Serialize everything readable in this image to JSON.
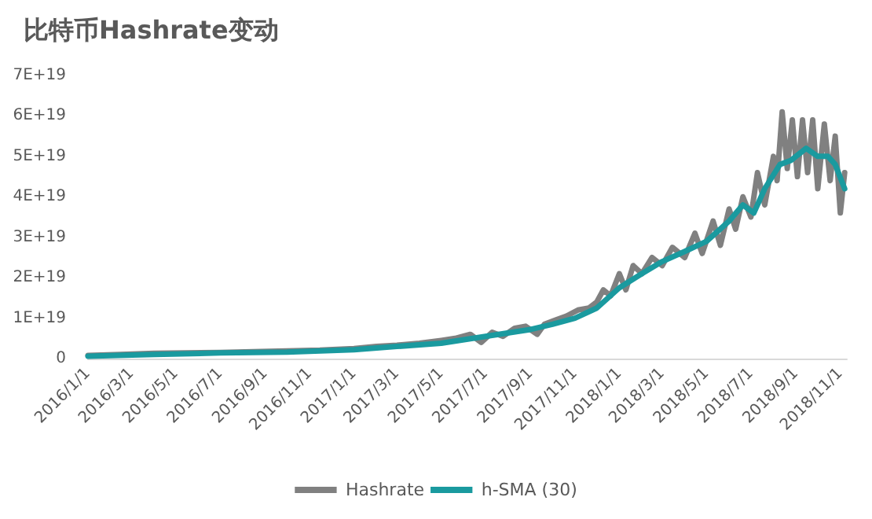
{
  "chart_data": {
    "type": "line",
    "title": "比特币Hashrate变动",
    "xlim": [
      "2016-01-01",
      "2018-11-10"
    ],
    "xticks": [
      {
        "value": "2016-01-01",
        "label": "2016/1/1"
      },
      {
        "value": "2016-03-01",
        "label": "2016/3/1"
      },
      {
        "value": "2016-05-01",
        "label": "2016/5/1"
      },
      {
        "value": "2016-07-01",
        "label": "2016/7/1"
      },
      {
        "value": "2016-09-01",
        "label": "2016/9/1"
      },
      {
        "value": "2016-11-01",
        "label": "2016/11/1"
      },
      {
        "value": "2017-01-01",
        "label": "2017/1/1"
      },
      {
        "value": "2017-03-01",
        "label": "2017/3/1"
      },
      {
        "value": "2017-05-01",
        "label": "2017/5/1"
      },
      {
        "value": "2017-07-01",
        "label": "2017/7/1"
      },
      {
        "value": "2017-09-01",
        "label": "2017/9/1"
      },
      {
        "value": "2017-11-01",
        "label": "2017/11/1"
      },
      {
        "value": "2018-01-01",
        "label": "2018/1/1"
      },
      {
        "value": "2018-03-01",
        "label": "2018/3/1"
      },
      {
        "value": "2018-05-01",
        "label": "2018/5/1"
      },
      {
        "value": "2018-07-01",
        "label": "2018/7/1"
      },
      {
        "value": "2018-09-01",
        "label": "2018/9/1"
      },
      {
        "value": "2018-11-01",
        "label": "2018/11/1"
      }
    ],
    "ylim": [
      0,
      7e+19
    ],
    "yticks": [
      0,
      {
        "value": 1e+19,
        "label": "1E+19"
      },
      {
        "value": 2e+19,
        "label": "2E+19"
      },
      {
        "value": 3e+19,
        "label": "3E+19"
      },
      {
        "value": 4e+19,
        "label": "4E+19"
      },
      {
        "value": 5e+19,
        "label": "5E+19"
      },
      {
        "value": 6e+19,
        "label": "6E+19"
      },
      {
        "value": 7e+19,
        "label": "7E+19"
      }
    ],
    "grid": false,
    "legend": "bottom",
    "marker": "none",
    "line_style": "solid",
    "series": [
      {
        "name": "Hashrate",
        "color": "#808080",
        "x": [
          "2016-01-01",
          "2016-02-15",
          "2016-04-01",
          "2016-05-15",
          "2016-07-01",
          "2016-08-15",
          "2016-10-01",
          "2016-11-15",
          "2017-01-01",
          "2017-02-01",
          "2017-03-01",
          "2017-04-01",
          "2017-05-01",
          "2017-05-20",
          "2017-06-10",
          "2017-06-25",
          "2017-07-10",
          "2017-07-25",
          "2017-08-10",
          "2017-08-25",
          "2017-09-10",
          "2017-09-20",
          "2017-10-05",
          "2017-10-20",
          "2017-11-05",
          "2017-11-20",
          "2017-12-01",
          "2017-12-10",
          "2017-12-20",
          "2018-01-01",
          "2018-01-10",
          "2018-01-20",
          "2018-02-01",
          "2018-02-15",
          "2018-03-01",
          "2018-03-15",
          "2018-04-01",
          "2018-04-15",
          "2018-04-25",
          "2018-05-10",
          "2018-05-20",
          "2018-06-01",
          "2018-06-10",
          "2018-06-20",
          "2018-07-01",
          "2018-07-10",
          "2018-07-20",
          "2018-08-01",
          "2018-08-06",
          "2018-08-13",
          "2018-08-20",
          "2018-08-27",
          "2018-09-03",
          "2018-09-10",
          "2018-09-17",
          "2018-09-24",
          "2018-10-01",
          "2018-10-10",
          "2018-10-18",
          "2018-10-25",
          "2018-11-01",
          "2018-11-07"
        ],
        "values": [
          8e+17,
          1e+18,
          1.3e+18,
          1.4e+18,
          1.5e+18,
          1.7e+18,
          1.9e+18,
          2.1e+18,
          2.5e+18,
          3e+18,
          3.3e+18,
          3.8e+18,
          4.5e+18,
          5e+18,
          6e+18,
          4e+18,
          6.5e+18,
          5.5e+18,
          7.5e+18,
          8e+18,
          6e+18,
          8.5e+18,
          9.5e+18,
          1.05e+19,
          1.2e+19,
          1.25e+19,
          1.4e+19,
          1.7e+19,
          1.55e+19,
          2.1e+19,
          1.7e+19,
          2.3e+19,
          2.1e+19,
          2.5e+19,
          2.3e+19,
          2.75e+19,
          2.5e+19,
          3.1e+19,
          2.6e+19,
          3.4e+19,
          2.8e+19,
          3.7e+19,
          3.2e+19,
          4e+19,
          3.5e+19,
          4.6e+19,
          3.8e+19,
          5e+19,
          4.4e+19,
          6.1e+19,
          4.7e+19,
          5.9e+19,
          4.5e+19,
          5.9e+19,
          4.6e+19,
          5.9e+19,
          4.2e+19,
          5.8e+19,
          4.4e+19,
          5.5e+19,
          3.6e+19,
          4.6e+19
        ]
      },
      {
        "name": "h-SMA (30)",
        "color": "#1a9a9f",
        "x": [
          "2016-01-01",
          "2016-04-01",
          "2016-07-01",
          "2016-10-01",
          "2017-01-01",
          "2017-03-01",
          "2017-05-01",
          "2017-07-01",
          "2017-09-01",
          "2017-10-01",
          "2017-11-01",
          "2017-12-01",
          "2018-01-01",
          "2018-02-01",
          "2018-03-01",
          "2018-04-01",
          "2018-05-01",
          "2018-06-01",
          "2018-06-20",
          "2018-07-05",
          "2018-07-20",
          "2018-08-10",
          "2018-08-25",
          "2018-09-15",
          "2018-10-01",
          "2018-10-15",
          "2018-10-25",
          "2018-11-07"
        ],
        "values": [
          6e+17,
          1e+18,
          1.4e+18,
          1.6e+18,
          2.2e+18,
          3e+18,
          3.8e+18,
          5.5e+18,
          7.2e+18,
          8.5e+18,
          1e+19,
          1.25e+19,
          1.75e+19,
          2.1e+19,
          2.4e+19,
          2.65e+19,
          2.9e+19,
          3.4e+19,
          3.8e+19,
          3.6e+19,
          4.2e+19,
          4.8e+19,
          4.9e+19,
          5.2e+19,
          5e+19,
          5e+19,
          4.8e+19,
          4.2e+19
        ]
      }
    ]
  }
}
